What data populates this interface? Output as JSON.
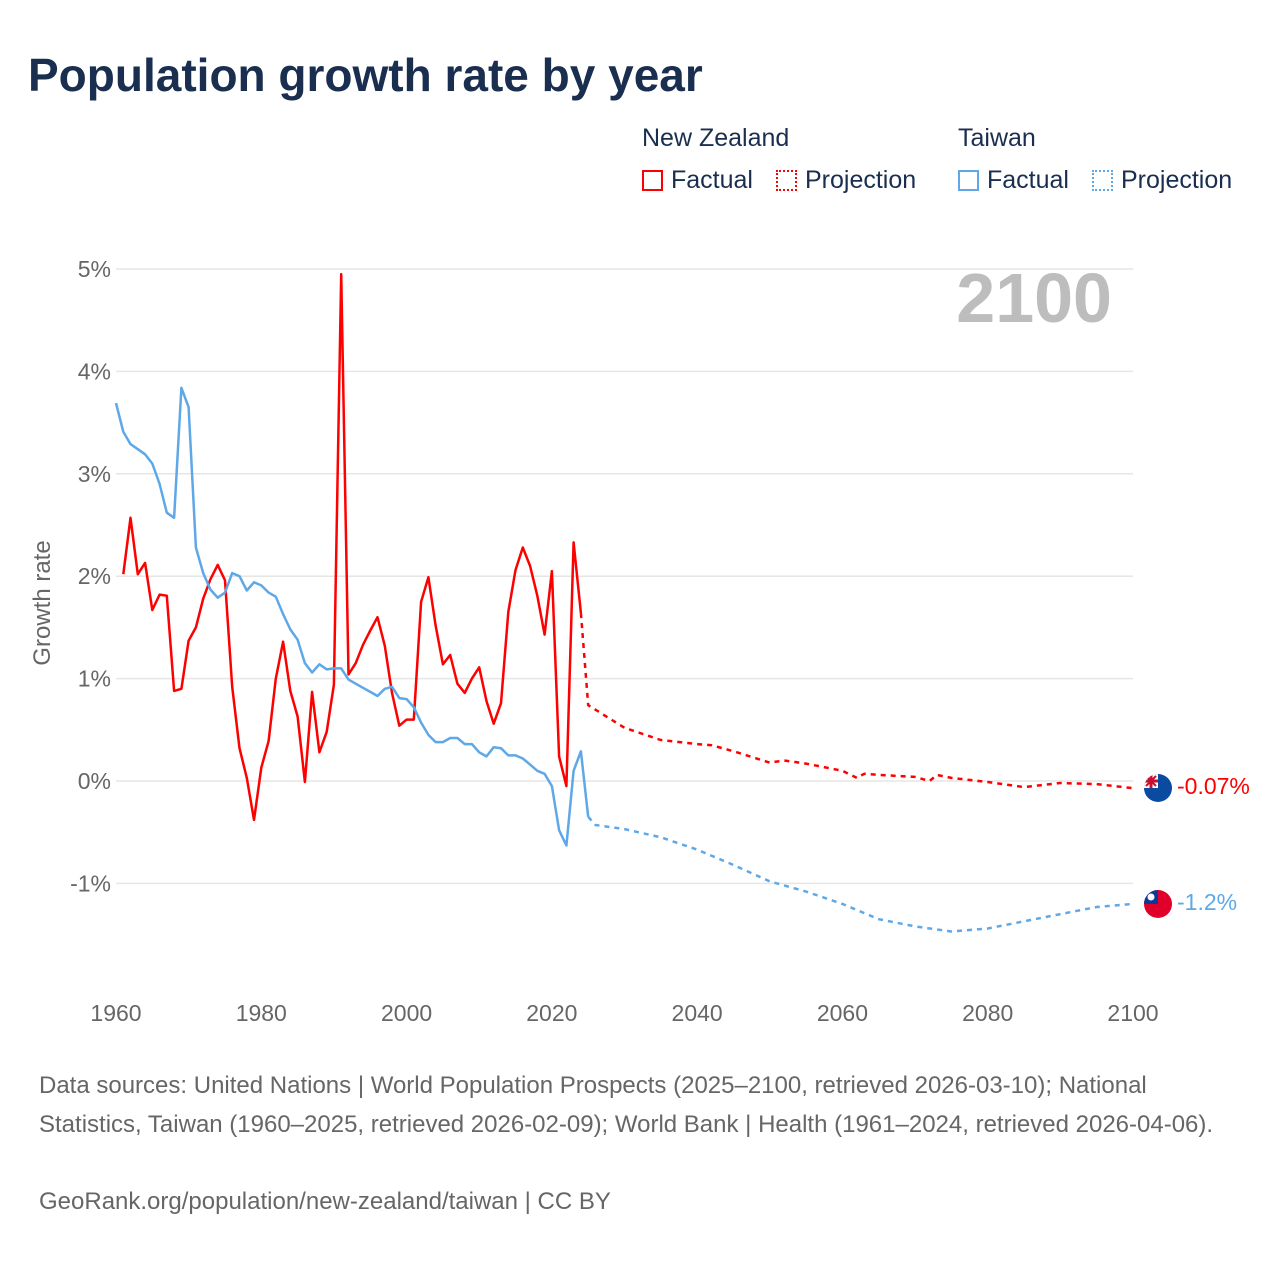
{
  "title": "Population growth rate by year",
  "legend": {
    "groups": [
      {
        "name": "New Zealand",
        "factual": "Factual",
        "projection": "Projection",
        "color": "#ff0000"
      },
      {
        "name": "Taiwan",
        "factual": "Factual",
        "projection": "Projection",
        "color": "#5fa8e8"
      }
    ]
  },
  "year_watermark": "2100",
  "end_labels": {
    "nz": "-0.07%",
    "tw": "-1.2%"
  },
  "source": "Data sources: United Nations | World Population Prospects (2025–2100, retrieved 2026-03-10); National Statistics, Taiwan (1960–2025, retrieved 2026-02-09); World Bank | Health (1961–2024, retrieved 2026-04-06).",
  "credit": "GeoRank.org/population/new-zealand/taiwan | CC BY",
  "chart_data": {
    "type": "line",
    "title": "Population growth rate by year",
    "xlabel": "",
    "ylabel": "Growth rate",
    "xlim": [
      1960,
      2100
    ],
    "ylim": [
      -2,
      5
    ],
    "xticks": [
      "1960",
      "1980",
      "2000",
      "2020",
      "2040",
      "2060",
      "2080",
      "2100"
    ],
    "yticks": [
      {
        "v": 5,
        "l": "5%"
      },
      {
        "v": 4,
        "l": "4%"
      },
      {
        "v": 3,
        "l": "3%"
      },
      {
        "v": 2,
        "l": "2%"
      },
      {
        "v": 1,
        "l": "1%"
      },
      {
        "v": 0,
        "l": "0%"
      },
      {
        "v": -1,
        "l": "-1%"
      }
    ],
    "series": [
      {
        "name": "New Zealand Factual",
        "color": "#ff0000",
        "dashed": false,
        "start": 1961,
        "values": [
          2.02,
          2.57,
          2.02,
          2.13,
          1.67,
          1.82,
          1.81,
          0.88,
          0.9,
          1.37,
          1.5,
          1.78,
          1.97,
          2.11,
          1.96,
          0.92,
          0.32,
          0.03,
          -0.38,
          0.13,
          0.39,
          1.0,
          1.36,
          0.88,
          0.63,
          -0.01,
          0.87,
          0.28,
          0.48,
          0.94,
          4.95,
          1.04,
          1.15,
          1.33,
          1.47,
          1.6,
          1.32,
          0.86,
          0.54,
          0.6,
          0.6,
          1.75,
          1.99,
          1.52,
          1.14,
          1.23,
          0.95,
          0.86,
          1.0,
          1.11,
          0.78,
          0.56,
          0.76,
          1.65,
          2.06,
          2.28,
          2.1,
          1.81,
          1.43,
          2.05,
          0.24,
          -0.05,
          2.33,
          1.64
        ]
      },
      {
        "name": "New Zealand Projection",
        "color": "#ff0000",
        "dashed": true,
        "points": [
          [
            2024,
            1.64
          ],
          [
            2025,
            0.74
          ],
          [
            2030,
            0.52
          ],
          [
            2035,
            0.4
          ],
          [
            2040,
            0.36
          ],
          [
            2042,
            0.35
          ],
          [
            2045,
            0.29
          ],
          [
            2050,
            0.18
          ],
          [
            2052,
            0.2
          ],
          [
            2055,
            0.17
          ],
          [
            2060,
            0.1
          ],
          [
            2062,
            0.03
          ],
          [
            2063,
            0.07
          ],
          [
            2065,
            0.06
          ],
          [
            2070,
            0.04
          ],
          [
            2072,
            0.0
          ],
          [
            2073,
            0.06
          ],
          [
            2075,
            0.03
          ],
          [
            2080,
            -0.01
          ],
          [
            2085,
            -0.06
          ],
          [
            2090,
            -0.02
          ],
          [
            2095,
            -0.03
          ],
          [
            2100,
            -0.07
          ]
        ]
      },
      {
        "name": "Taiwan Factual",
        "color": "#5fa8e8",
        "dashed": false,
        "start": 1960,
        "values": [
          3.69,
          3.41,
          3.29,
          3.24,
          3.19,
          3.1,
          2.9,
          2.62,
          2.57,
          3.84,
          3.65,
          2.28,
          2.03,
          1.87,
          1.79,
          1.84,
          2.03,
          2.0,
          1.86,
          1.94,
          1.91,
          1.84,
          1.8,
          1.63,
          1.48,
          1.38,
          1.15,
          1.06,
          1.14,
          1.09,
          1.1,
          1.1,
          0.99,
          0.95,
          0.91,
          0.87,
          0.83,
          0.9,
          0.92,
          0.81,
          0.8,
          0.72,
          0.57,
          0.45,
          0.38,
          0.38,
          0.42,
          0.42,
          0.36,
          0.36,
          0.28,
          0.24,
          0.33,
          0.32,
          0.25,
          0.25,
          0.22,
          0.16,
          0.1,
          0.07,
          -0.05,
          -0.48,
          -0.63,
          0.1,
          0.29,
          -0.35
        ]
      },
      {
        "name": "Taiwan Projection",
        "color": "#5fa8e8",
        "dashed": true,
        "points": [
          [
            2025,
            -0.35
          ],
          [
            2026,
            -0.43
          ],
          [
            2030,
            -0.47
          ],
          [
            2035,
            -0.55
          ],
          [
            2040,
            -0.67
          ],
          [
            2045,
            -0.82
          ],
          [
            2050,
            -0.98
          ],
          [
            2055,
            -1.08
          ],
          [
            2060,
            -1.2
          ],
          [
            2065,
            -1.35
          ],
          [
            2070,
            -1.42
          ],
          [
            2075,
            -1.47
          ],
          [
            2080,
            -1.44
          ],
          [
            2085,
            -1.37
          ],
          [
            2090,
            -1.3
          ],
          [
            2095,
            -1.23
          ],
          [
            2100,
            -1.2
          ]
        ]
      }
    ]
  }
}
